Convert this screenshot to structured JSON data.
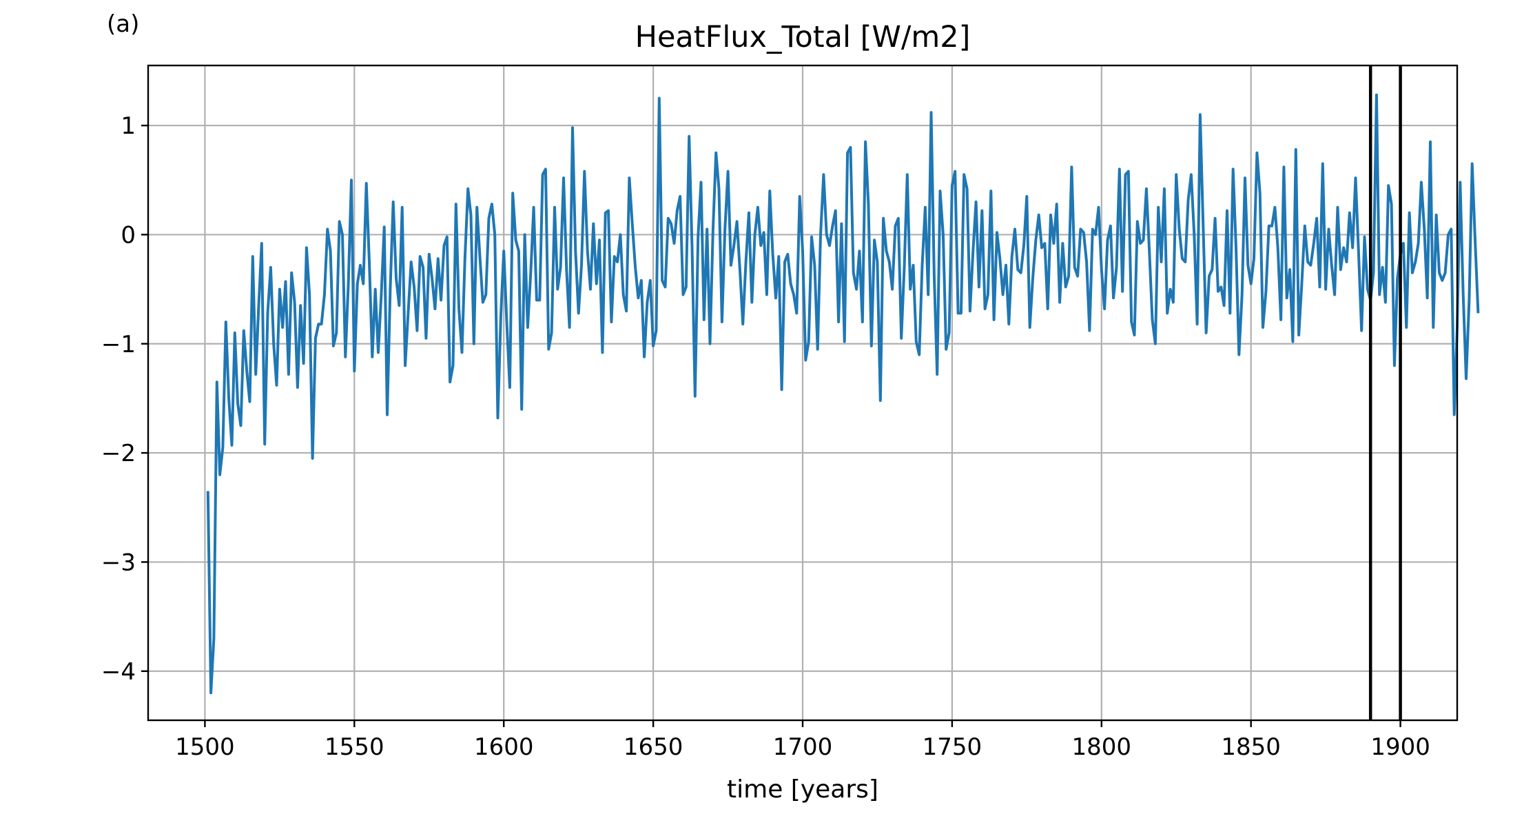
{
  "panel_label": "(a)",
  "chart_data": {
    "type": "line",
    "title": "HeatFlux_Total [W/m2]",
    "xlabel": "time [years]",
    "ylabel": "",
    "xlim": [
      1481,
      1919
    ],
    "ylim": [
      -4.45,
      1.55
    ],
    "xticks": [
      1500,
      1550,
      1600,
      1650,
      1700,
      1750,
      1800,
      1850,
      1900
    ],
    "yticks": [
      1,
      0,
      -1,
      -2,
      -3,
      -4
    ],
    "ytick_labels": [
      "1",
      "0",
      "−1",
      "−2",
      "−3",
      "−4"
    ],
    "grid": true,
    "line_color": "#1f77b4",
    "vline_color": "#000000",
    "vlines": [
      1890,
      1900
    ],
    "x_start": 1501,
    "series": [
      {
        "color": "#1f77b4",
        "values": [
          -2.35,
          -4.2,
          -3.7,
          -1.35,
          -2.2,
          -1.95,
          -0.8,
          -1.5,
          -1.93,
          -0.9,
          -1.55,
          -1.75,
          -0.88,
          -1.25,
          -1.53,
          -0.2,
          -1.28,
          -0.65,
          -0.08,
          -1.92,
          -0.72,
          -0.3,
          -1.0,
          -1.38,
          -0.5,
          -0.85,
          -0.43,
          -1.28,
          -0.35,
          -0.62,
          -1.4,
          -0.65,
          -1.18,
          -0.12,
          -0.55,
          -2.05,
          -0.95,
          -0.82,
          -0.82,
          -0.55,
          0.05,
          -0.15,
          -1.02,
          -0.9,
          0.12,
          0.0,
          -1.12,
          -0.45,
          0.5,
          -1.25,
          -0.45,
          -0.28,
          -0.45,
          0.47,
          -0.25,
          -1.12,
          -0.5,
          -1.08,
          -0.55,
          0.07,
          -1.65,
          -0.5,
          0.3,
          -0.4,
          -0.65,
          0.25,
          -1.2,
          -0.72,
          -0.25,
          -0.48,
          -0.88,
          -0.2,
          -0.3,
          -0.95,
          -0.18,
          -0.4,
          -0.68,
          -0.22,
          -0.6,
          -0.1,
          -0.02,
          -1.35,
          -1.2,
          0.28,
          -0.68,
          -1.08,
          -0.22,
          0.42,
          0.18,
          -1.0,
          0.25,
          -0.2,
          -0.62,
          -0.55,
          0.15,
          0.28,
          0.0,
          -1.68,
          -0.75,
          -0.15,
          -0.8,
          -1.4,
          0.38,
          -0.05,
          -0.15,
          -1.6,
          0.0,
          -0.85,
          -0.35,
          0.25,
          -0.6,
          -0.6,
          0.55,
          0.6,
          -1.05,
          -0.9,
          0.25,
          -0.5,
          -0.3,
          0.52,
          -0.32,
          -0.85,
          0.98,
          -0.15,
          -0.72,
          -0.28,
          0.58,
          -0.15,
          -0.5,
          0.1,
          -0.45,
          -0.05,
          -1.08,
          0.2,
          0.22,
          -0.8,
          -0.2,
          -0.25,
          0.0,
          -0.55,
          -0.7,
          0.52,
          0.1,
          -0.3,
          -0.58,
          -0.42,
          -1.12,
          -0.62,
          -0.42,
          -1.02,
          -0.88,
          1.25,
          -0.42,
          -0.48,
          0.15,
          0.1,
          -0.08,
          0.22,
          0.35,
          -0.55,
          -0.48,
          0.9,
          -0.12,
          -1.48,
          -0.02,
          0.48,
          -0.78,
          0.05,
          -1.0,
          0.05,
          0.75,
          0.42,
          -0.8,
          0.05,
          0.58,
          -0.28,
          -0.1,
          0.12,
          -0.32,
          -0.82,
          -0.25,
          0.2,
          -0.62,
          0.0,
          0.25,
          -0.1,
          0.02,
          -0.55,
          0.4,
          -0.18,
          -0.58,
          -0.2,
          -1.42,
          -0.25,
          -0.18,
          -0.45,
          -0.55,
          -0.72,
          0.35,
          -0.15,
          -1.15,
          -0.98,
          -0.02,
          -0.28,
          -1.05,
          0.0,
          0.55,
          0.0,
          -0.1,
          0.08,
          0.22,
          -0.8,
          0.1,
          -0.98,
          0.75,
          0.8,
          -0.35,
          -0.5,
          -0.15,
          -0.8,
          0.85,
          0.28,
          -1.02,
          -0.05,
          -0.25,
          -1.52,
          0.15,
          -0.15,
          -0.25,
          -0.5,
          0.08,
          0.15,
          -0.95,
          -0.3,
          0.55,
          -0.5,
          -0.28,
          -0.98,
          -1.1,
          -0.28,
          0.25,
          -0.55,
          1.12,
          -0.38,
          -1.28,
          0.4,
          0.0,
          -1.05,
          -0.9,
          0.45,
          0.58,
          -0.72,
          -0.72,
          0.55,
          0.42,
          -0.7,
          -0.15,
          0.3,
          -0.48,
          0.22,
          -0.68,
          -0.55,
          0.4,
          -0.78,
          0.02,
          -0.22,
          -0.55,
          -0.28,
          -0.82,
          -0.2,
          0.05,
          -0.32,
          -0.35,
          -0.1,
          0.35,
          -0.85,
          -0.4,
          -0.05,
          0.18,
          -0.12,
          -0.08,
          -0.68,
          0.18,
          -0.08,
          0.28,
          -0.62,
          -0.08,
          -0.48,
          -0.38,
          0.62,
          -0.3,
          -0.38,
          0.05,
          0.02,
          -0.25,
          -0.88,
          0.05,
          0.0,
          0.25,
          -0.32,
          -0.68,
          -0.05,
          0.08,
          -0.58,
          -0.3,
          0.6,
          -0.52,
          0.55,
          0.58,
          -0.8,
          -0.92,
          0.12,
          -0.08,
          -0.05,
          0.42,
          -0.15,
          -0.78,
          -1.0,
          0.25,
          -0.25,
          0.42,
          -0.72,
          -0.5,
          -0.62,
          0.55,
          0.05,
          -0.22,
          -0.25,
          0.32,
          0.55,
          0.0,
          -0.82,
          1.1,
          0.08,
          -0.9,
          -0.38,
          -0.32,
          0.15,
          -0.52,
          -0.48,
          -0.65,
          0.22,
          -0.72,
          0.6,
          -0.12,
          -1.1,
          -0.55,
          0.52,
          -0.28,
          -0.45,
          -0.22,
          0.75,
          0.38,
          -0.85,
          -0.52,
          0.08,
          0.08,
          0.25,
          -0.12,
          -0.78,
          0.62,
          -0.58,
          -0.32,
          -0.98,
          0.78,
          -0.92,
          -0.45,
          0.08,
          -0.25,
          -0.28,
          -0.08,
          0.15,
          -0.48,
          0.65,
          -0.5,
          0.05,
          -0.28,
          -0.55,
          0.25,
          -0.32,
          -0.12,
          -0.25,
          0.2,
          -0.12,
          0.52,
          -0.15,
          -0.88,
          -0.02,
          -0.5,
          -0.6,
          -0.35,
          1.28,
          -0.55,
          -0.3,
          -0.62,
          0.45,
          0.28,
          -1.2,
          -0.4,
          -0.18,
          -0.08,
          -0.85,
          0.2,
          -0.35,
          -0.25,
          -0.08,
          0.48,
          0.05,
          -0.58,
          0.85,
          -0.85,
          0.18,
          -0.35,
          -0.42,
          -0.35,
          0.0,
          0.05,
          -1.65,
          -0.85,
          0.48,
          -0.55,
          -1.32,
          -0.6,
          0.65,
          -0.05,
          -0.72
        ]
      }
    ]
  }
}
